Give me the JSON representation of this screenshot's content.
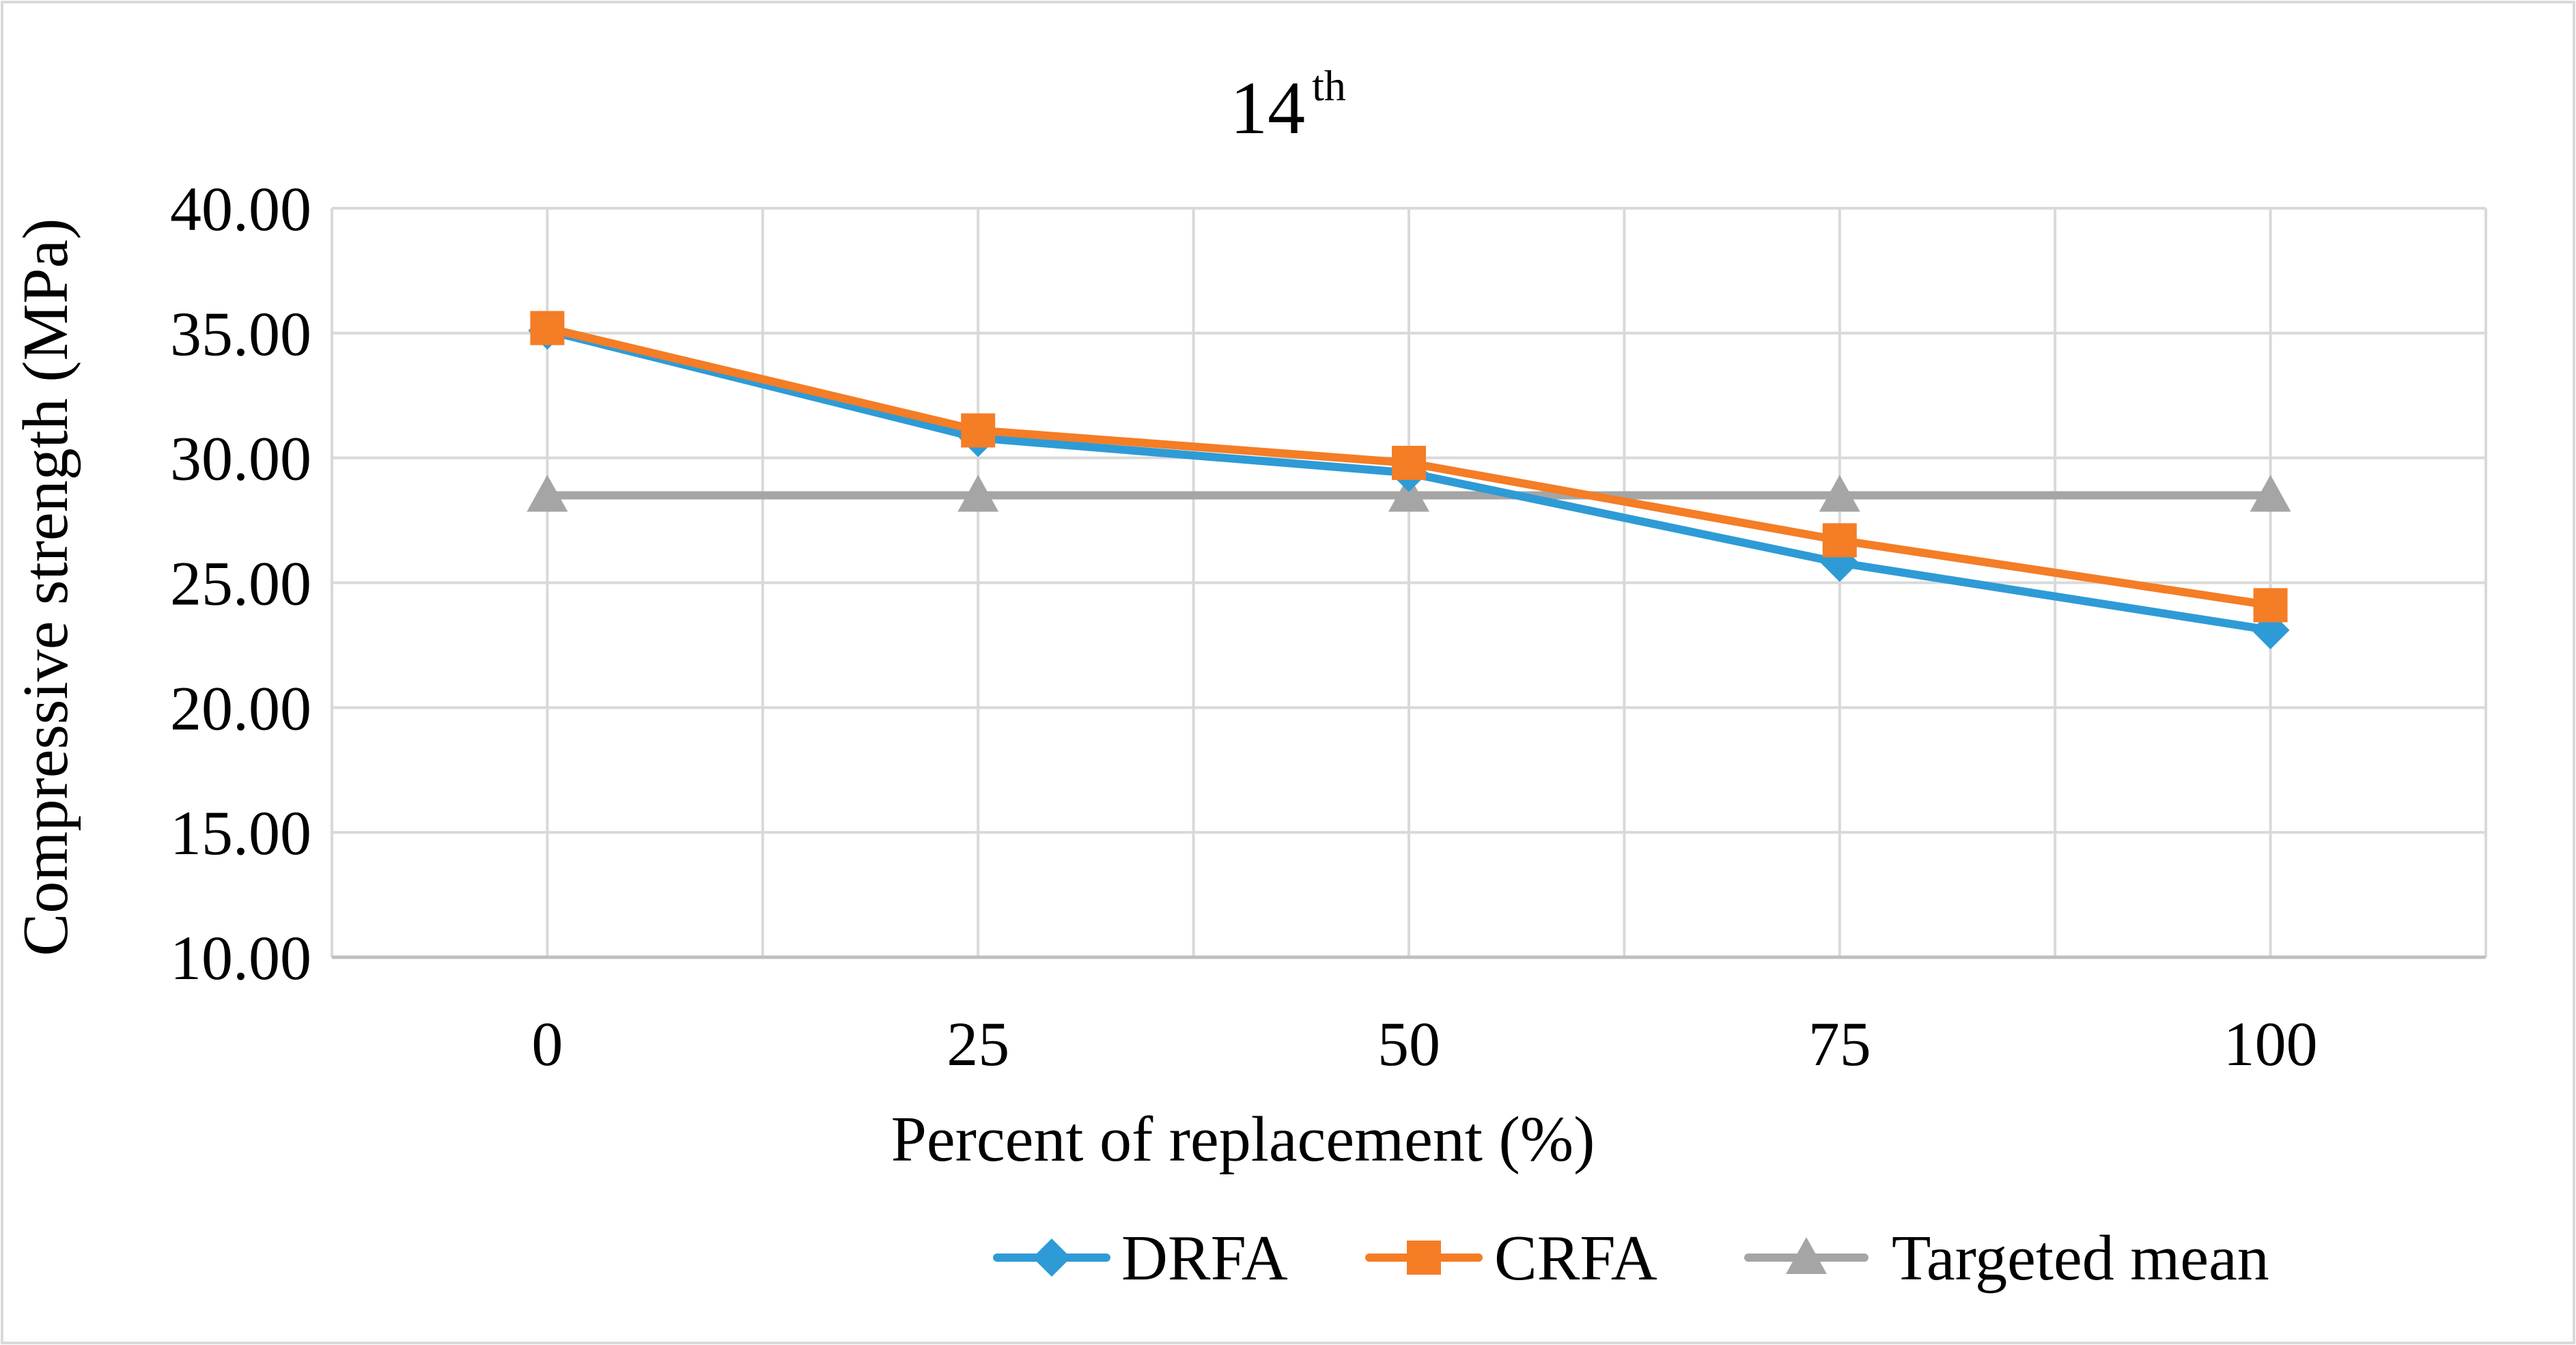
{
  "chart_data": {
    "type": "line",
    "title": "14",
    "title_superscript": "th",
    "xlabel": "Percent of replacement (%)",
    "ylabel": "Compressive strength (MPa)",
    "categories": [
      "0",
      "25",
      "50",
      "75",
      "100"
    ],
    "ylim": [
      10,
      40
    ],
    "yticks": [
      10,
      15,
      20,
      25,
      30,
      35,
      40
    ],
    "ytick_labels": [
      "10.00",
      "15.00",
      "20.00",
      "25.00",
      "30.00",
      "35.00",
      "40.00"
    ],
    "grid": true,
    "legend_position": "bottom",
    "series": [
      {
        "name": "DRFA",
        "values": [
          35.1,
          30.8,
          29.4,
          25.8,
          23.1
        ],
        "color": "#2E9BD6",
        "marker": "diamond"
      },
      {
        "name": "CRFA",
        "values": [
          35.2,
          31.1,
          29.8,
          26.7,
          24.1
        ],
        "color": "#F47D26",
        "marker": "square"
      },
      {
        "name": "Targeted mean",
        "values": [
          28.5,
          28.5,
          28.5,
          28.5,
          28.5
        ],
        "color": "#A5A5A5",
        "marker": "triangle"
      }
    ]
  }
}
